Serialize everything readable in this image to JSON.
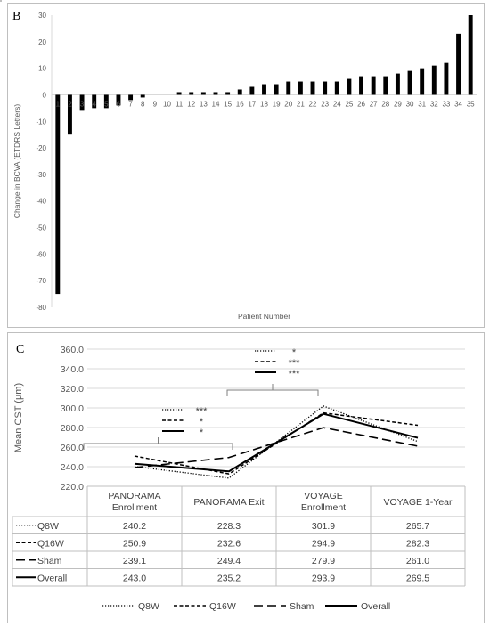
{
  "chart_data": [
    {
      "panel": "B",
      "type": "bar",
      "xlabel": "Patient Number",
      "ylabel": "Change in BCVA (ETDRS Letters)",
      "ylim": [
        -80,
        30
      ],
      "yticks": [
        30,
        20,
        10,
        0,
        -10,
        -20,
        -30,
        -40,
        -50,
        -60,
        -70,
        -80
      ],
      "categories": [
        "1",
        "2",
        "3",
        "4",
        "5",
        "6",
        "7",
        "8",
        "9",
        "10",
        "11",
        "12",
        "13",
        "14",
        "15",
        "16",
        "17",
        "18",
        "19",
        "20",
        "21",
        "22",
        "23",
        "24",
        "25",
        "26",
        "27",
        "28",
        "29",
        "30",
        "31",
        "32",
        "33",
        "34",
        "35"
      ],
      "values": [
        -75,
        -15,
        -6,
        -5,
        -5,
        -4,
        -2,
        -1,
        0,
        0,
        1,
        1,
        1,
        1,
        1,
        2,
        3,
        4,
        4,
        5,
        5,
        5,
        5,
        5,
        6,
        7,
        7,
        7,
        8,
        9,
        10,
        11,
        12,
        23,
        30
      ],
      "color": "#000000",
      "grid": false
    },
    {
      "panel": "C",
      "type": "line",
      "ylabel": "Mean CST (µm)",
      "ylim": [
        220,
        360
      ],
      "yticks": [
        "360.0",
        "340.0",
        "320.0",
        "300.0",
        "280.0",
        "260.0",
        "240.0",
        "220.0"
      ],
      "categories": [
        "PANORAMA Enrollment",
        "PANORAMA Exit",
        "VOYAGE Enrollment",
        "VOYAGE 1-Year"
      ],
      "series": [
        {
          "name": "Q8W",
          "style": "dotted",
          "values": [
            240.2,
            228.3,
            301.9,
            265.7
          ],
          "display": [
            "240.2",
            "228.3",
            "301.9",
            "265.7"
          ]
        },
        {
          "name": "Q16W",
          "style": "dashed",
          "values": [
            250.9,
            232.6,
            294.9,
            282.3
          ],
          "display": [
            "250.9",
            "232.6",
            "294.9",
            "282.3"
          ]
        },
        {
          "name": "Sham",
          "style": "long-dash",
          "values": [
            239.1,
            249.4,
            279.9,
            261.0
          ],
          "display": [
            "239.1",
            "249.4",
            "279.9",
            "261.0"
          ]
        },
        {
          "name": "Overall",
          "style": "solid",
          "values": [
            243.0,
            235.2,
            293.9,
            269.5
          ],
          "display": [
            "243.0",
            "235.2",
            "293.9",
            "269.5"
          ]
        }
      ],
      "significance": [
        {
          "between": [
            "PANORAMA Enrollment",
            "PANORAMA Exit"
          ],
          "marks": [
            "***",
            "*",
            "*"
          ]
        },
        {
          "between": [
            "PANORAMA Exit",
            "VOYAGE Enrollment"
          ],
          "marks": [
            "*",
            "***",
            "***"
          ]
        }
      ],
      "legend": "bottom",
      "data_table": true,
      "color": "#000000"
    }
  ]
}
